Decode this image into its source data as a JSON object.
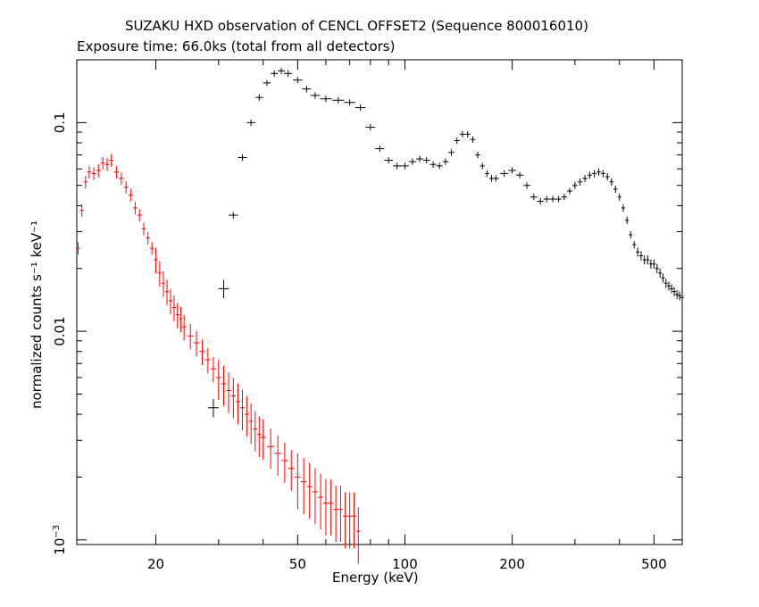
{
  "chart_data": {
    "type": "scatter",
    "title": "SUZAKU HXD observation of CENCL OFFSET2 (Sequence 800016010)",
    "subtitle": "Exposure time: 66.0ks (total from all detectors)",
    "xlabel": "Energy (keV)",
    "ylabel": "normalized counts s⁻¹ keV⁻¹",
    "x_scale": "log",
    "y_scale": "log",
    "xlim": [
      12,
      600
    ],
    "ylim": [
      0.00095,
      0.2
    ],
    "x_ticks": [
      {
        "value": 20,
        "label": "20"
      },
      {
        "value": 50,
        "label": "50"
      },
      {
        "value": 100,
        "label": "100"
      },
      {
        "value": 200,
        "label": "200"
      },
      {
        "value": 500,
        "label": "500"
      }
    ],
    "y_ticks": [
      {
        "value": 0.001,
        "label": "10",
        "sup": "−3"
      },
      {
        "value": 0.01,
        "label": "0.01",
        "sup": ""
      },
      {
        "value": 0.1,
        "label": "0.1",
        "sup": ""
      }
    ],
    "series": [
      {
        "color": "#ff0000",
        "err_frac": [
          0.07,
          0.14,
          0.22,
          0.3
        ],
        "points": [
          [
            12.1,
            0.025
          ],
          [
            12.4,
            0.038
          ],
          [
            12.7,
            0.052
          ],
          [
            13.0,
            0.058
          ],
          [
            13.4,
            0.057
          ],
          [
            13.8,
            0.059
          ],
          [
            14.2,
            0.064
          ],
          [
            14.6,
            0.063
          ],
          [
            15.0,
            0.066
          ],
          [
            15.5,
            0.058
          ],
          [
            16.0,
            0.054
          ],
          [
            16.5,
            0.049
          ],
          [
            17.0,
            0.045
          ],
          [
            17.5,
            0.039
          ],
          [
            18.0,
            0.036
          ],
          [
            18.5,
            0.031
          ],
          [
            19.0,
            0.028
          ],
          [
            19.5,
            0.025
          ],
          [
            20.0,
            0.022
          ],
          [
            20.5,
            0.019
          ],
          [
            21.0,
            0.017
          ],
          [
            21.5,
            0.0155
          ],
          [
            22.0,
            0.014
          ],
          [
            22.5,
            0.013
          ],
          [
            23.0,
            0.012
          ],
          [
            23.5,
            0.0115
          ],
          [
            24.0,
            0.0105
          ],
          [
            25.0,
            0.0095
          ],
          [
            26.0,
            0.0088
          ],
          [
            27.0,
            0.008
          ],
          [
            28.0,
            0.0073
          ],
          [
            29.0,
            0.0066
          ],
          [
            30.0,
            0.006
          ],
          [
            31.0,
            0.0056
          ],
          [
            32.0,
            0.0052
          ],
          [
            33.0,
            0.0049
          ],
          [
            34.0,
            0.0046
          ],
          [
            35.0,
            0.0043
          ],
          [
            36.0,
            0.004
          ],
          [
            37.0,
            0.0037
          ],
          [
            38.0,
            0.0034
          ],
          [
            39.0,
            0.0032
          ],
          [
            40.0,
            0.0031
          ],
          [
            42.0,
            0.0028
          ],
          [
            44.0,
            0.0026
          ],
          [
            46.0,
            0.0024
          ],
          [
            48.0,
            0.0022
          ],
          [
            50.0,
            0.002
          ],
          [
            52.0,
            0.0019
          ],
          [
            54.0,
            0.0018
          ],
          [
            56.0,
            0.0017
          ],
          [
            58.0,
            0.0016
          ],
          [
            60.0,
            0.0015
          ],
          [
            62.0,
            0.0015
          ],
          [
            64.0,
            0.0014
          ],
          [
            66.0,
            0.0014
          ],
          [
            68.0,
            0.0013
          ],
          [
            70.0,
            0.0013
          ],
          [
            72.0,
            0.0013
          ],
          [
            74.0,
            0.0011
          ]
        ]
      },
      {
        "color": "#000000",
        "err_frac": [
          0.1,
          0.035,
          0.04,
          0.05
        ],
        "points": [
          [
            29.0,
            0.0043
          ],
          [
            31.0,
            0.016
          ],
          [
            33.0,
            0.036
          ],
          [
            35.0,
            0.068
          ],
          [
            37.0,
            0.1
          ],
          [
            39.0,
            0.132
          ],
          [
            41.0,
            0.155
          ],
          [
            43.0,
            0.172
          ],
          [
            45.0,
            0.177
          ],
          [
            47.0,
            0.172
          ],
          [
            50.0,
            0.16
          ],
          [
            53.0,
            0.145
          ],
          [
            56.0,
            0.135
          ],
          [
            60.0,
            0.13
          ],
          [
            65.0,
            0.128
          ],
          [
            70.0,
            0.125
          ],
          [
            75.0,
            0.118
          ],
          [
            80.0,
            0.095
          ],
          [
            85.0,
            0.075
          ],
          [
            90.0,
            0.066
          ],
          [
            95.0,
            0.062
          ],
          [
            100.0,
            0.062
          ],
          [
            105.0,
            0.065
          ],
          [
            110.0,
            0.067
          ],
          [
            115.0,
            0.066
          ],
          [
            120.0,
            0.063
          ],
          [
            125.0,
            0.062
          ],
          [
            130.0,
            0.065
          ],
          [
            135.0,
            0.072
          ],
          [
            140.0,
            0.082
          ],
          [
            145.0,
            0.088
          ],
          [
            150.0,
            0.088
          ],
          [
            155.0,
            0.083
          ],
          [
            160.0,
            0.07
          ],
          [
            165.0,
            0.062
          ],
          [
            170.0,
            0.057
          ],
          [
            175.0,
            0.054
          ],
          [
            180.0,
            0.054
          ],
          [
            190.0,
            0.057
          ],
          [
            200.0,
            0.059
          ],
          [
            210.0,
            0.056
          ],
          [
            220.0,
            0.05
          ],
          [
            230.0,
            0.044
          ],
          [
            240.0,
            0.042
          ],
          [
            250.0,
            0.043
          ],
          [
            260.0,
            0.043
          ],
          [
            270.0,
            0.043
          ],
          [
            280.0,
            0.044
          ],
          [
            290.0,
            0.047
          ],
          [
            300.0,
            0.05
          ],
          [
            310.0,
            0.052
          ],
          [
            320.0,
            0.054
          ],
          [
            330.0,
            0.056
          ],
          [
            340.0,
            0.057
          ],
          [
            350.0,
            0.058
          ],
          [
            360.0,
            0.057
          ],
          [
            370.0,
            0.055
          ],
          [
            380.0,
            0.052
          ],
          [
            390.0,
            0.048
          ],
          [
            400.0,
            0.044
          ],
          [
            410.0,
            0.039
          ],
          [
            420.0,
            0.034
          ],
          [
            430.0,
            0.029
          ],
          [
            440.0,
            0.026
          ],
          [
            450.0,
            0.024
          ],
          [
            460.0,
            0.023
          ],
          [
            470.0,
            0.022
          ],
          [
            480.0,
            0.022
          ],
          [
            490.0,
            0.021
          ],
          [
            500.0,
            0.021
          ],
          [
            510.0,
            0.02
          ],
          [
            520.0,
            0.019
          ],
          [
            530.0,
            0.018
          ],
          [
            540.0,
            0.017
          ],
          [
            550.0,
            0.0165
          ],
          [
            560.0,
            0.016
          ],
          [
            570.0,
            0.0155
          ],
          [
            580.0,
            0.015
          ],
          [
            590.0,
            0.0148
          ],
          [
            600.0,
            0.0145
          ]
        ]
      }
    ]
  }
}
